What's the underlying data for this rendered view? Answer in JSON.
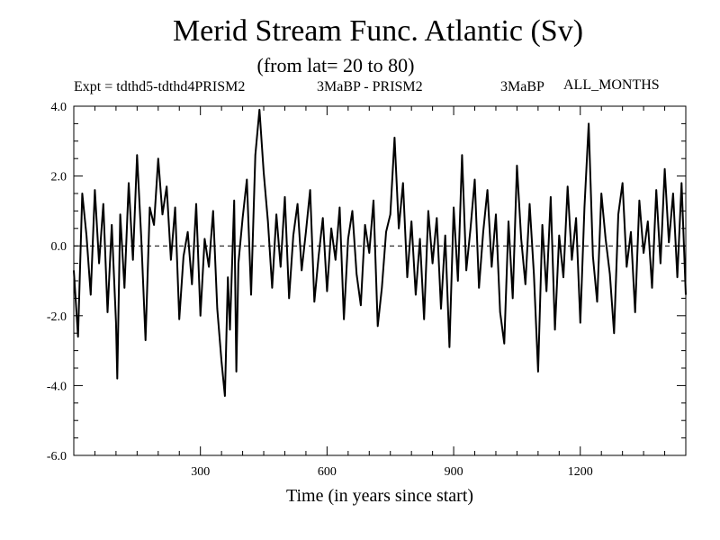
{
  "header": {
    "title": "Merid Stream Func. Atlantic (Sv)",
    "subtitle": "(from lat= 20 to 80)",
    "expt": "Expt = tdthd5-tdthd4PRISM2",
    "expt_part2": "3MaBP - PRISM2",
    "expt_part3": "3MaBP",
    "months": "ALL_MONTHS"
  },
  "chart_data": {
    "type": "line",
    "title": "Merid Stream Func. Atlantic (Sv)",
    "subtitle": "(from lat= 20 to 80)",
    "xlabel": "Time (in years since start)",
    "ylabel": "",
    "xlim": [
      0,
      1450
    ],
    "ylim": [
      -6.0,
      4.0
    ],
    "xticks": [
      300,
      600,
      900,
      1200
    ],
    "xtick_labels": [
      "300",
      "600",
      "900",
      "1200"
    ],
    "yticks": [
      -6.0,
      -4.0,
      -2.0,
      0.0,
      2.0,
      4.0
    ],
    "ytick_labels": [
      "-6.0",
      "-4.0",
      "-2.0",
      "0.0",
      "2.0",
      "4.0"
    ],
    "zero_line": true,
    "grid": false,
    "line_color": "#000000",
    "series": [
      {
        "x": [
          0,
          10,
          20,
          30,
          40,
          50,
          60,
          70,
          80,
          90,
          100,
          103,
          110,
          120,
          130,
          140,
          150,
          160,
          170,
          180,
          190,
          200,
          210,
          220,
          230,
          240,
          250,
          260,
          270,
          280,
          290,
          300,
          310,
          320,
          330,
          340,
          350,
          358,
          365,
          370,
          380,
          385,
          390,
          400,
          410,
          420,
          430,
          440,
          450,
          460,
          470,
          480,
          490,
          500,
          510,
          520,
          530,
          540,
          550,
          560,
          570,
          580,
          590,
          600,
          610,
          620,
          630,
          640,
          650,
          660,
          670,
          680,
          690,
          700,
          710,
          720,
          730,
          740,
          750,
          760,
          770,
          780,
          790,
          800,
          810,
          820,
          830,
          840,
          850,
          860,
          870,
          880,
          890,
          900,
          910,
          920,
          930,
          940,
          950,
          960,
          970,
          980,
          990,
          1000,
          1010,
          1020,
          1030,
          1040,
          1050,
          1060,
          1070,
          1080,
          1090,
          1100,
          1110,
          1120,
          1130,
          1140,
          1150,
          1160,
          1170,
          1180,
          1190,
          1200,
          1210,
          1220,
          1230,
          1240,
          1250,
          1260,
          1270,
          1280,
          1290,
          1300,
          1310,
          1320,
          1330,
          1340,
          1350,
          1360,
          1370,
          1380,
          1390,
          1400,
          1410,
          1420,
          1430,
          1440,
          1450
        ],
        "values": [
          -0.7,
          -2.6,
          1.5,
          0.3,
          -1.4,
          1.6,
          -0.5,
          1.2,
          -1.9,
          0.6,
          -2.2,
          -3.8,
          0.9,
          -1.2,
          1.8,
          -0.4,
          2.6,
          0.2,
          -2.7,
          1.1,
          0.6,
          2.5,
          0.9,
          1.7,
          -0.4,
          1.1,
          -2.1,
          -0.3,
          0.4,
          -1.1,
          1.2,
          -2.0,
          0.2,
          -0.6,
          1.0,
          -1.8,
          -3.3,
          -4.3,
          -0.9,
          -2.4,
          1.3,
          -3.6,
          -0.5,
          0.8,
          1.9,
          -1.4,
          2.6,
          3.9,
          2.1,
          0.7,
          -1.2,
          0.9,
          -0.6,
          1.4,
          -1.5,
          0.3,
          1.2,
          -0.7,
          0.4,
          1.6,
          -1.6,
          -0.3,
          0.8,
          -1.3,
          0.5,
          -0.4,
          1.1,
          -2.1,
          0.2,
          1.0,
          -0.8,
          -1.7,
          0.6,
          -0.2,
          1.3,
          -2.3,
          -1.2,
          0.4,
          0.9,
          3.1,
          0.5,
          1.8,
          -0.9,
          0.7,
          -1.4,
          0.2,
          -2.1,
          1.0,
          -0.5,
          0.8,
          -1.8,
          0.3,
          -2.9,
          1.1,
          -1.0,
          2.6,
          -0.7,
          0.5,
          1.9,
          -1.2,
          0.4,
          1.6,
          -0.6,
          0.9,
          -1.9,
          -2.8,
          0.7,
          -1.5,
          2.3,
          0.2,
          -1.1,
          1.2,
          -0.8,
          -3.6,
          0.6,
          -1.3,
          1.4,
          -2.4,
          0.3,
          -0.9,
          1.7,
          -0.4,
          0.8,
          -2.2,
          1.1,
          3.5,
          -0.3,
          -1.6,
          1.5,
          0.2,
          -0.8,
          -2.5,
          0.9,
          1.8,
          -0.6,
          0.4,
          -1.9,
          1.3,
          -0.2,
          0.7,
          -1.2,
          1.6,
          -0.5,
          2.2,
          0.1,
          1.5,
          -0.9,
          1.8,
          -1.4
        ]
      }
    ]
  }
}
